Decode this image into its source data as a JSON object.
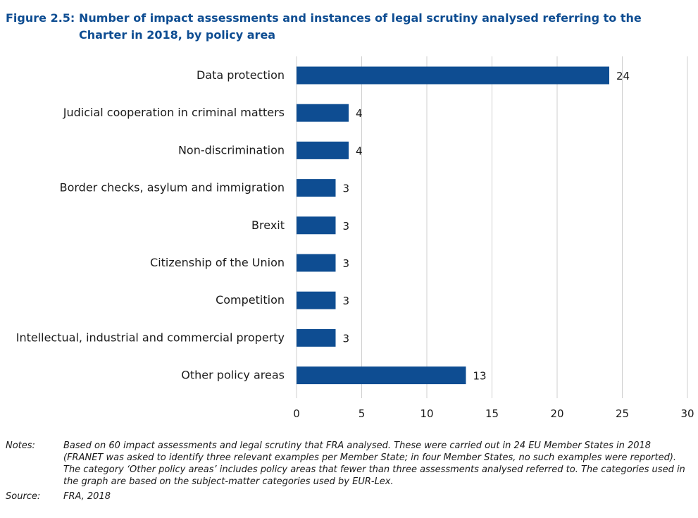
{
  "figure": {
    "label": "Figure 2.5:",
    "title": "Number of impact assessments and instances of legal scrutiny analysed referring to the Charter in 2018, by policy area"
  },
  "colors": {
    "bar": "#0e4d92",
    "title": "#0e4d92",
    "grid": "#cfcfcf",
    "text": "#1a1a1a"
  },
  "chart_data": {
    "type": "bar",
    "orientation": "horizontal",
    "categories": [
      "Data protection",
      "Judicial cooperation in criminal matters",
      "Non-discrimination",
      "Border checks, asylum and immigration",
      "Brexit",
      "Citizenship of the Union",
      "Competition",
      "Intellectual, industrial and commercial property",
      "Other policy areas"
    ],
    "values": [
      24,
      4,
      4,
      3,
      3,
      3,
      3,
      3,
      13
    ],
    "data_labels": [
      "24",
      "4",
      "4",
      "3",
      "3",
      "3",
      "3",
      "3",
      "13"
    ],
    "xlim": [
      0,
      30
    ],
    "xticks": [
      0,
      5,
      10,
      15,
      20,
      25,
      30
    ],
    "xtick_labels": [
      "0",
      "5",
      "10",
      "15",
      "20",
      "25",
      "30"
    ],
    "grid": "vertical"
  },
  "notes": {
    "notes_label": "Notes:",
    "notes_text": "Based on 60 impact assessments and legal scrutiny that FRA analysed. These were carried out in 24 EU Member States in 2018 (FRANET was asked to identify three relevant examples per Member State; in four Member States, no such examples were reported). The category ‘Other policy areas’ includes policy areas that fewer than three assessments analysed referred to. The categories used in the graph are based on the subject-matter categories used by EUR-Lex.",
    "source_label": "Source:",
    "source_text": "FRA, 2018"
  }
}
